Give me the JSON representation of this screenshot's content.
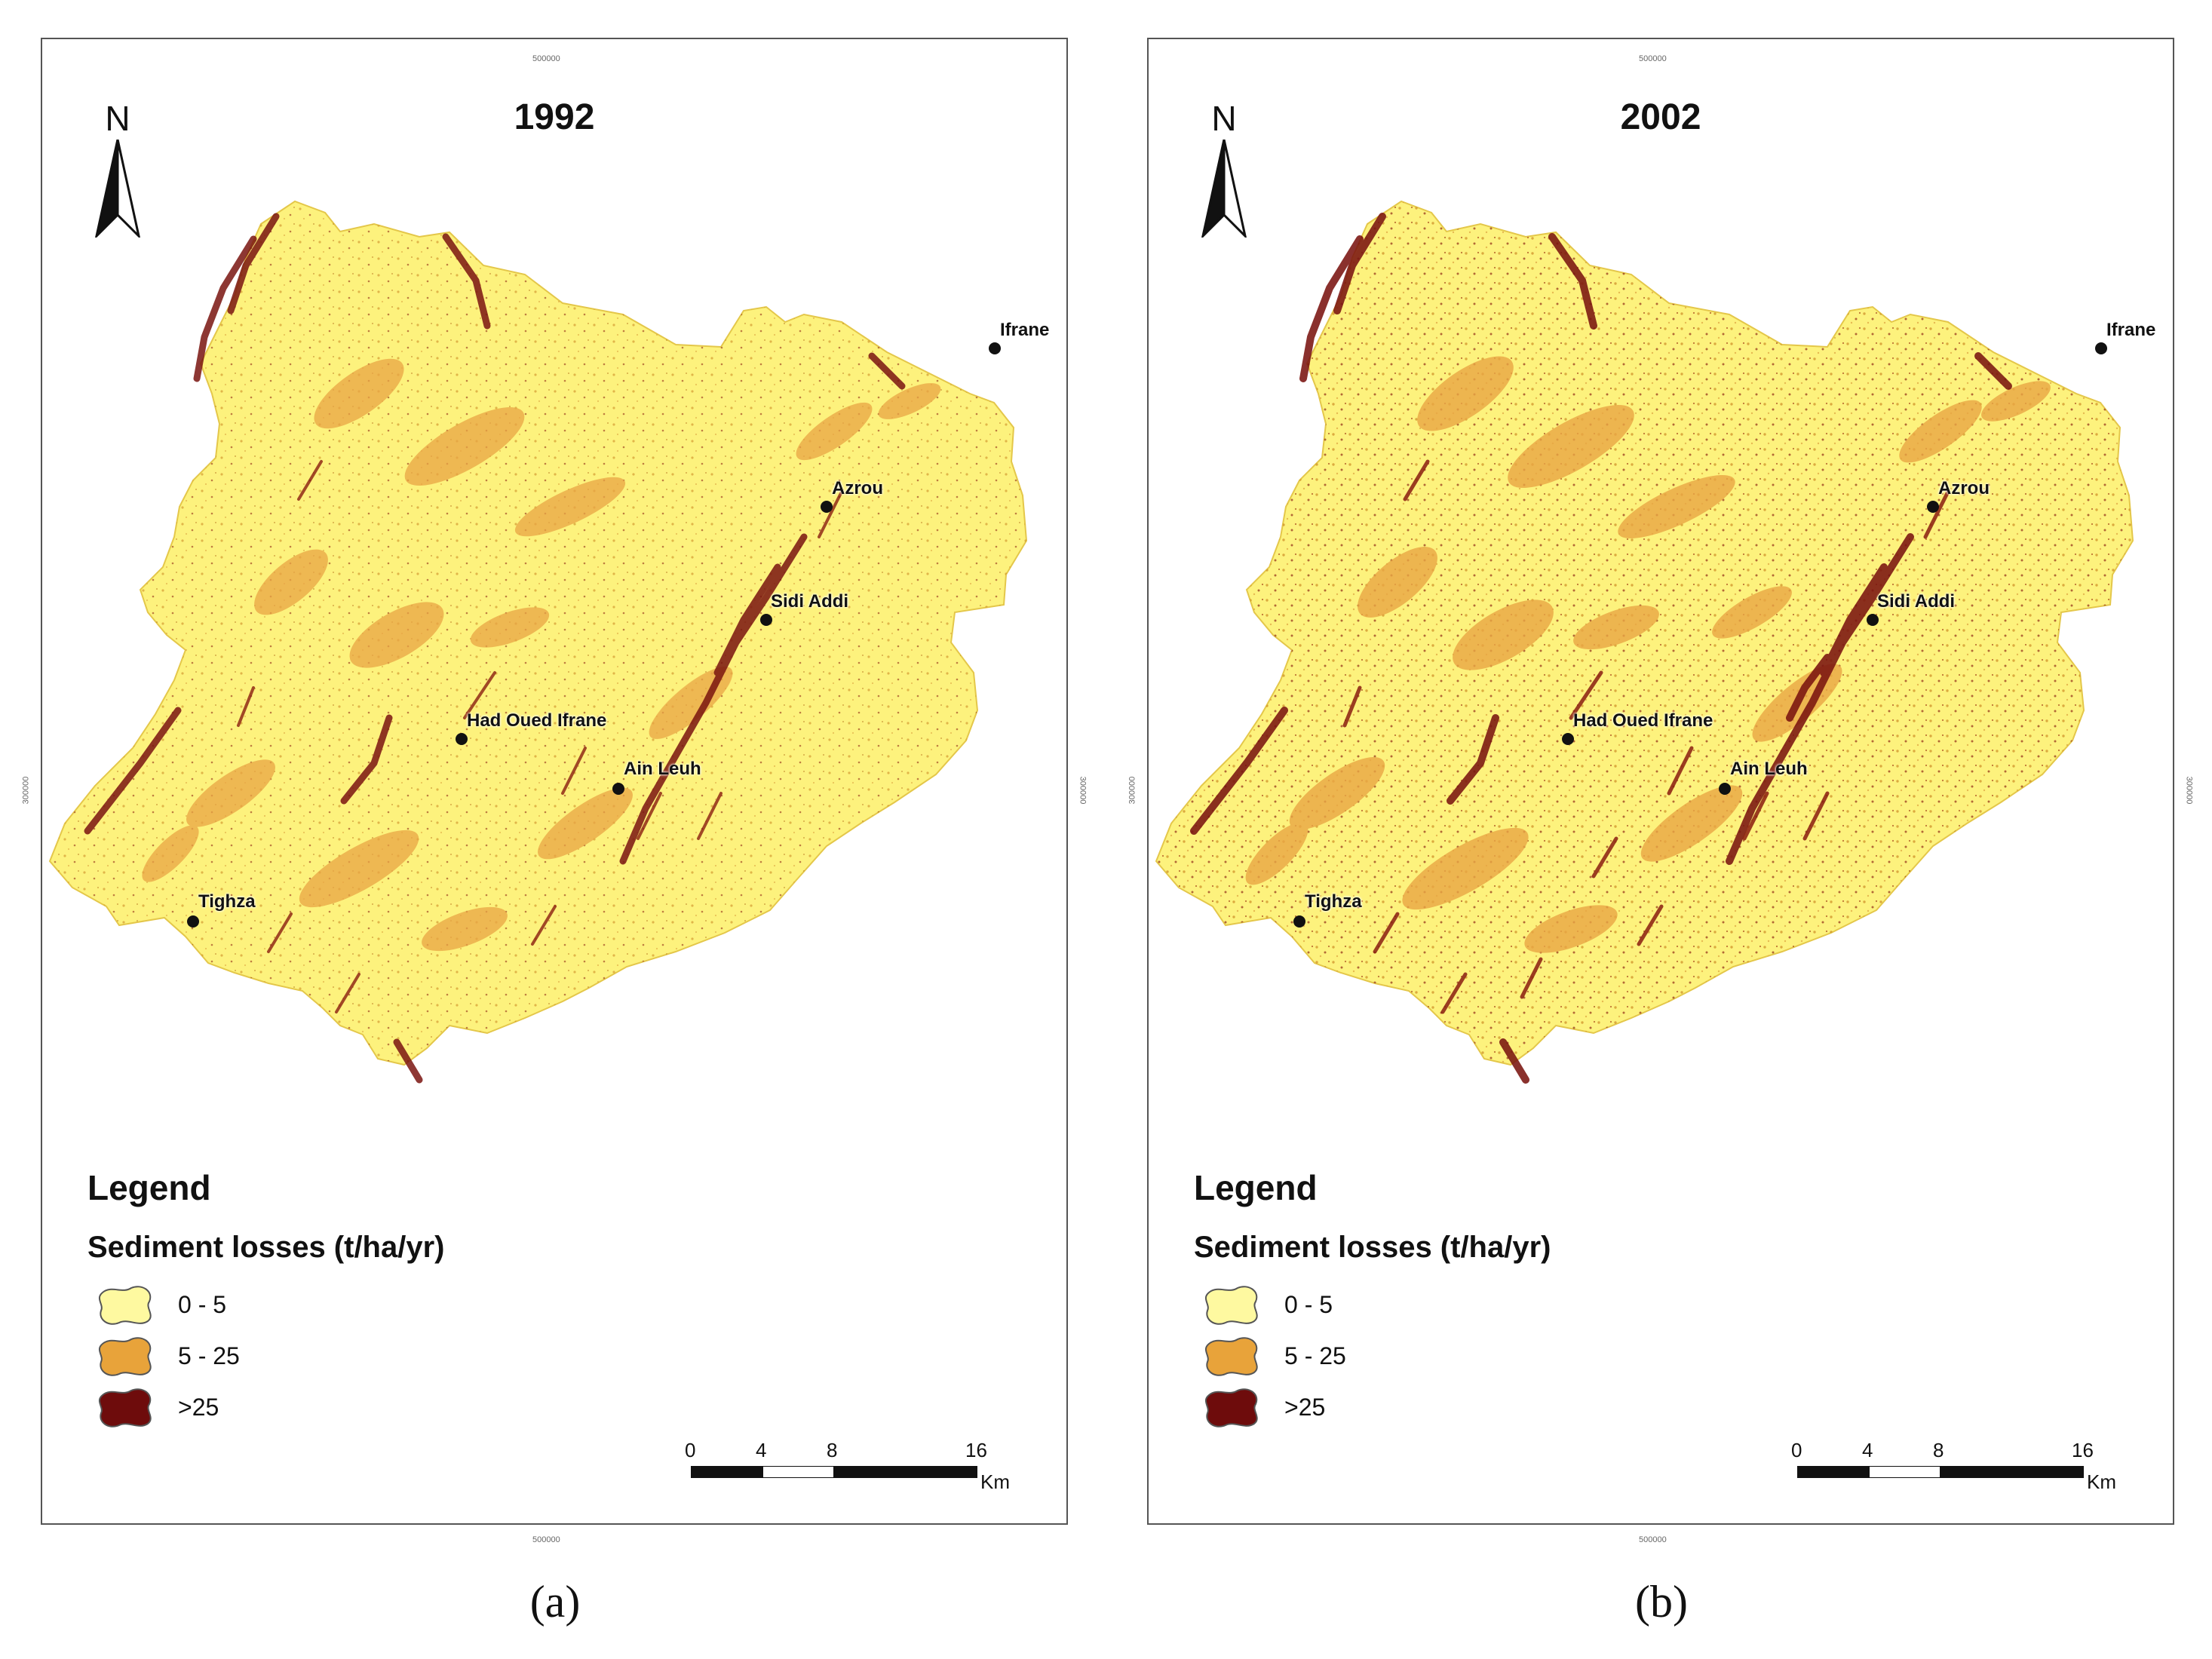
{
  "panels": [
    {
      "id": "a",
      "title": "1992",
      "caption": "(a)",
      "north_label": "N",
      "coord_ticks": {
        "top": "500000",
        "bottom": "500000",
        "left": "300000",
        "right": "300000"
      },
      "places": [
        {
          "name": "Ifrane"
        },
        {
          "name": "Azrou"
        },
        {
          "name": "Sidi Addi"
        },
        {
          "name": "Had Oued Ifrane"
        },
        {
          "name": "Ain Leuh"
        },
        {
          "name": "Tighza"
        }
      ],
      "legend": {
        "heading": "Legend",
        "subtitle": "Sediment losses (t/ha/yr)",
        "classes": [
          {
            "label": "0 - 5",
            "color": "#fef58a"
          },
          {
            "label": "5 - 25",
            "color": "#e8a33a"
          },
          {
            "label": ">25",
            "color": "#6e0c0c"
          }
        ]
      },
      "scale": {
        "ticks": [
          "0",
          "4",
          "8",
          "16"
        ],
        "unit": "Km"
      }
    },
    {
      "id": "b",
      "title": "2002",
      "caption": "(b)",
      "north_label": "N",
      "coord_ticks": {
        "top": "500000",
        "bottom": "500000",
        "left": "300000",
        "right": "300000"
      },
      "places": [
        {
          "name": "Ifrane"
        },
        {
          "name": "Azrou"
        },
        {
          "name": "Sidi Addi"
        },
        {
          "name": "Had Oued Ifrane"
        },
        {
          "name": "Ain Leuh"
        },
        {
          "name": "Tighza"
        }
      ],
      "legend": {
        "heading": "Legend",
        "subtitle": "Sediment losses (t/ha/yr)",
        "classes": [
          {
            "label": "0 - 5",
            "color": "#fef58a"
          },
          {
            "label": "5 - 25",
            "color": "#e8a33a"
          },
          {
            "label": ">25",
            "color": "#6e0c0c"
          }
        ]
      },
      "scale": {
        "ticks": [
          "0",
          "4",
          "8",
          "16"
        ],
        "unit": "Km"
      }
    }
  ]
}
